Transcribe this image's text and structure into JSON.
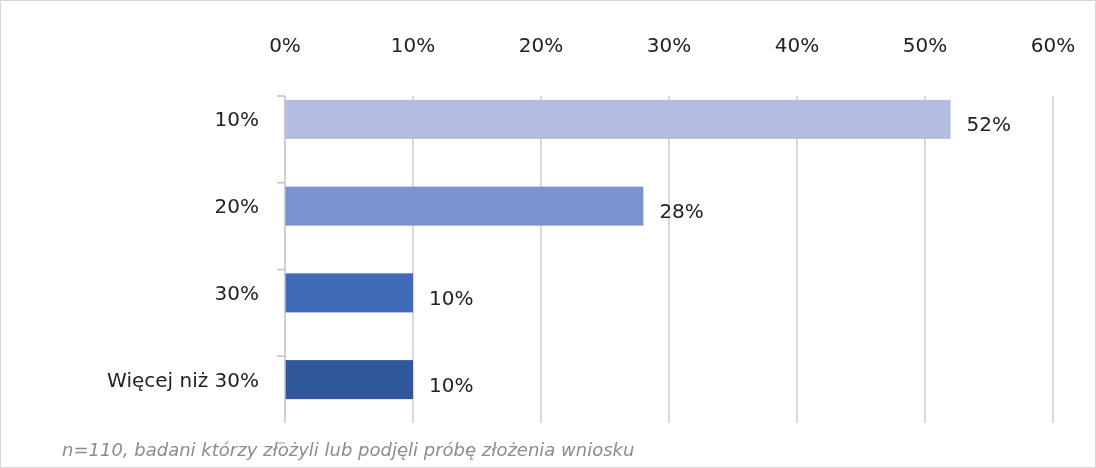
{
  "chart_data": {
    "type": "bar",
    "orientation": "horizontal",
    "categories": [
      "10%",
      "20%",
      "30%",
      "Więcej niż 30%"
    ],
    "values": [
      52,
      28,
      10,
      10
    ],
    "colors": [
      "#b2bddf",
      "#7a93cf",
      "#3f6bb8",
      "#31589a"
    ],
    "value_labels": [
      "52%",
      "28%",
      "10%",
      "10%"
    ],
    "xlim": [
      0,
      60
    ],
    "xticks": [
      {
        "value": 0,
        "label": "0%"
      },
      {
        "value": 10,
        "label": "10%"
      },
      {
        "value": 20,
        "label": "20%"
      },
      {
        "value": 30,
        "label": "30%"
      },
      {
        "value": 40,
        "label": "40%"
      },
      {
        "value": 50,
        "label": "50%"
      },
      {
        "value": 60,
        "label": "60%"
      }
    ],
    "grid": "x",
    "annotations": [
      "n=110, badani którzy złożyli lub podjęli próbę złożenia wniosku"
    ]
  }
}
